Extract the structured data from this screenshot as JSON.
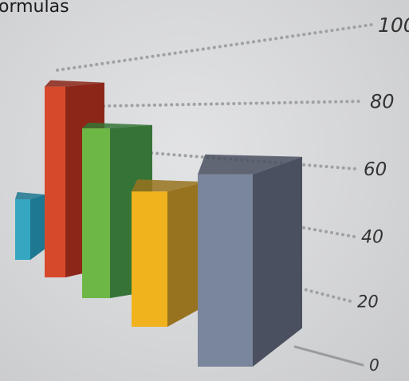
{
  "chart_data": {
    "type": "bar",
    "title": "ormulas",
    "xlabel": "",
    "ylabel": "",
    "ylim": [
      0,
      100
    ],
    "yticks": [
      0,
      20,
      40,
      60,
      80,
      100
    ],
    "grid": true,
    "legend": "none",
    "categories": [
      "",
      "",
      "",
      "",
      ""
    ],
    "values": [
      38,
      88,
      73,
      57,
      67
    ],
    "colors": {
      "front": [
        "#35a7c1",
        "#d6492a",
        "#6db746",
        "#f0b21d",
        "#7a869b"
      ],
      "side": [
        "#1f7891",
        "#8c2618",
        "#357436",
        "#98731f",
        "#4a5060"
      ]
    }
  }
}
